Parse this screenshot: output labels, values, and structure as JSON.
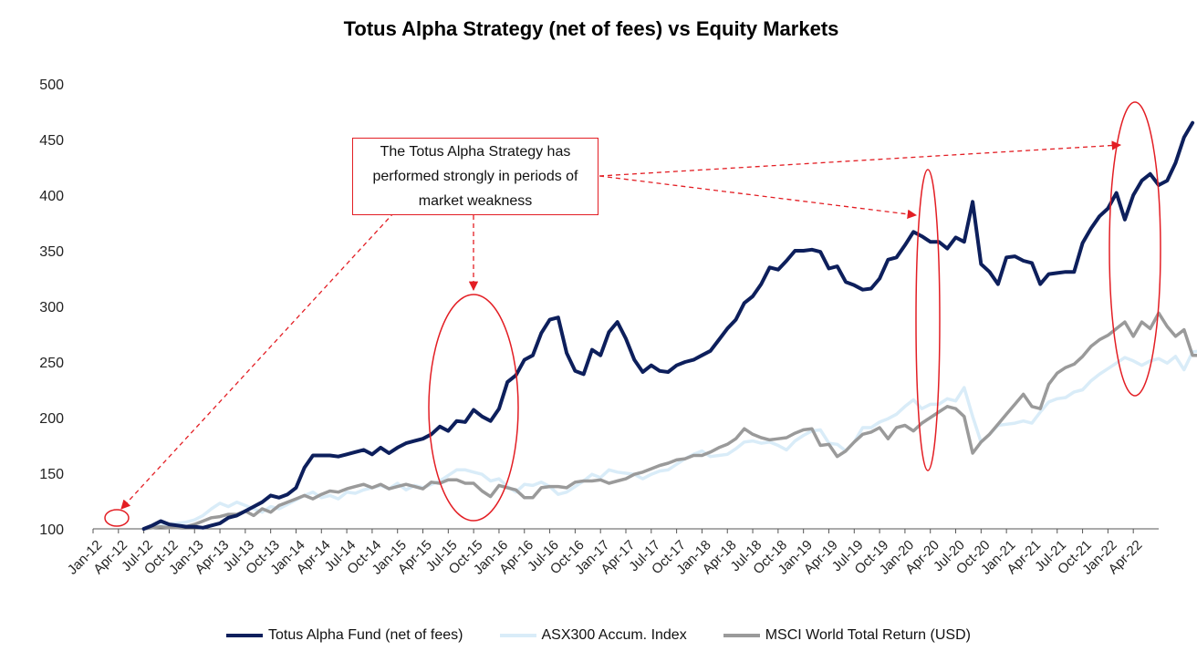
{
  "title": "Totus Alpha Strategy (net of fees) vs Equity Markets",
  "annotation": "The Totus Alpha Strategy has performed strongly in periods of market weakness",
  "chart_data": {
    "type": "line",
    "title": "Totus Alpha Strategy (net of fees) vs Equity Markets",
    "xlabel": "",
    "ylabel": "",
    "ylim": [
      100,
      500
    ],
    "yticks": [
      100,
      150,
      200,
      250,
      300,
      350,
      400,
      450,
      500
    ],
    "xlim": [
      0,
      126
    ],
    "xtick_labels": [
      "Jan-12",
      "Apr-12",
      "Jul-12",
      "Oct-12",
      "Jan-13",
      "Apr-13",
      "Jul-13",
      "Oct-13",
      "Jan-14",
      "Apr-14",
      "Jul-14",
      "Oct-14",
      "Jan-15",
      "Apr-15",
      "Jul-15",
      "Oct-15",
      "Jan-16",
      "Apr-16",
      "Jul-16",
      "Oct-16",
      "Jan-17",
      "Apr-17",
      "Jul-17",
      "Oct-17",
      "Jan-18",
      "Apr-18",
      "Jul-18",
      "Oct-18",
      "Jan-19",
      "Apr-19",
      "Jul-19",
      "Oct-19",
      "Jan-20",
      "Apr-20",
      "Jul-20",
      "Oct-20",
      "Jan-21",
      "Apr-21",
      "Jul-21",
      "Oct-21",
      "Jan-22",
      "Apr-22"
    ],
    "xtick_every_months": 3,
    "legend_position": "bottom",
    "series": [
      {
        "name": "Totus Alpha Fund (net of fees)",
        "color": "#0d1f5c",
        "start_month": 6,
        "values": [
          100,
          103,
          107,
          104,
          103,
          102,
          102,
          101,
          103,
          105,
          110,
          112,
          116,
          120,
          124,
          130,
          128,
          131,
          137,
          155,
          166,
          166,
          166,
          165,
          167,
          169,
          171,
          167,
          173,
          168,
          173,
          177,
          179,
          181,
          185,
          192,
          188,
          197,
          196,
          207,
          201,
          197,
          208,
          232,
          238,
          252,
          256,
          276,
          288,
          290,
          258,
          242,
          239,
          261,
          256,
          277,
          286,
          271,
          252,
          241,
          247,
          242,
          241,
          247,
          250,
          252,
          256,
          260,
          270,
          280,
          288,
          303,
          309,
          320,
          335,
          333,
          341,
          350,
          350,
          351,
          349,
          334,
          336,
          322,
          319,
          315,
          316,
          325,
          342,
          344,
          355,
          367,
          363,
          358,
          358,
          352,
          362,
          358,
          394,
          338,
          331,
          320,
          344,
          345,
          341,
          339,
          320,
          329,
          330,
          331,
          331,
          357,
          370,
          381,
          388,
          402,
          378,
          400,
          413,
          419,
          409,
          413,
          429,
          452,
          465
        ]
      },
      {
        "name": "ASX300 Accum. Index",
        "color": "#d9ecf8",
        "start_month": 6,
        "values": [
          100,
          101,
          103,
          104,
          105,
          106,
          108,
          112,
          118,
          123,
          120,
          124,
          121,
          118,
          115,
          120,
          118,
          122,
          126,
          130,
          133,
          128,
          130,
          127,
          133,
          132,
          135,
          137,
          139,
          136,
          141,
          135,
          139,
          137,
          140,
          143,
          148,
          153,
          153,
          151,
          149,
          143,
          145,
          138,
          133,
          140,
          139,
          142,
          138,
          131,
          133,
          138,
          143,
          149,
          146,
          153,
          151,
          150,
          149,
          145,
          149,
          152,
          153,
          158,
          163,
          167,
          170,
          165,
          166,
          167,
          172,
          178,
          179,
          177,
          178,
          175,
          171,
          179,
          184,
          188,
          189,
          177,
          176,
          170,
          178,
          191,
          191,
          196,
          199,
          203,
          210,
          216,
          208,
          212,
          212,
          217,
          215,
          227,
          201,
          178,
          185,
          193,
          194,
          195,
          197,
          195,
          205,
          214,
          217,
          218,
          223,
          225,
          233,
          239,
          244,
          249,
          254,
          251,
          247,
          251,
          253,
          249,
          255,
          243,
          259,
          260
        ]
      },
      {
        "name": "MSCI World Total Return (USD)",
        "color": "#9a9a9a",
        "start_month": 6,
        "values": [
          100,
          101,
          102,
          101,
          101,
          102,
          104,
          107,
          110,
          111,
          113,
          113,
          116,
          112,
          118,
          115,
          121,
          124,
          127,
          130,
          127,
          131,
          134,
          133,
          136,
          138,
          140,
          137,
          140,
          136,
          138,
          140,
          138,
          136,
          142,
          141,
          144,
          144,
          141,
          141,
          134,
          129,
          139,
          137,
          135,
          128,
          128,
          137,
          138,
          138,
          137,
          142,
          143,
          143,
          144,
          141,
          143,
          145,
          149,
          151,
          154,
          157,
          159,
          162,
          163,
          166,
          166,
          169,
          173,
          176,
          181,
          190,
          185,
          182,
          180,
          181,
          182,
          186,
          189,
          190,
          175,
          176,
          165,
          170,
          178,
          185,
          187,
          191,
          181,
          191,
          193,
          188,
          195,
          200,
          205,
          210,
          208,
          201,
          168,
          178,
          185,
          194,
          203,
          212,
          221,
          210,
          208,
          230,
          240,
          245,
          248,
          255,
          264,
          270,
          274,
          280,
          286,
          273,
          286,
          280,
          294,
          282,
          273,
          279,
          256,
          256
        ]
      }
    ],
    "callout": {
      "text": "The Totus Alpha Strategy has performed strongly in periods of market weakness",
      "highlighted_periods": [
        "Apr-12 to Jul-12",
        "Jul-15 to Apr-16",
        "Jan-20 to Apr-20",
        "Oct-21 to Apr-22"
      ]
    }
  }
}
